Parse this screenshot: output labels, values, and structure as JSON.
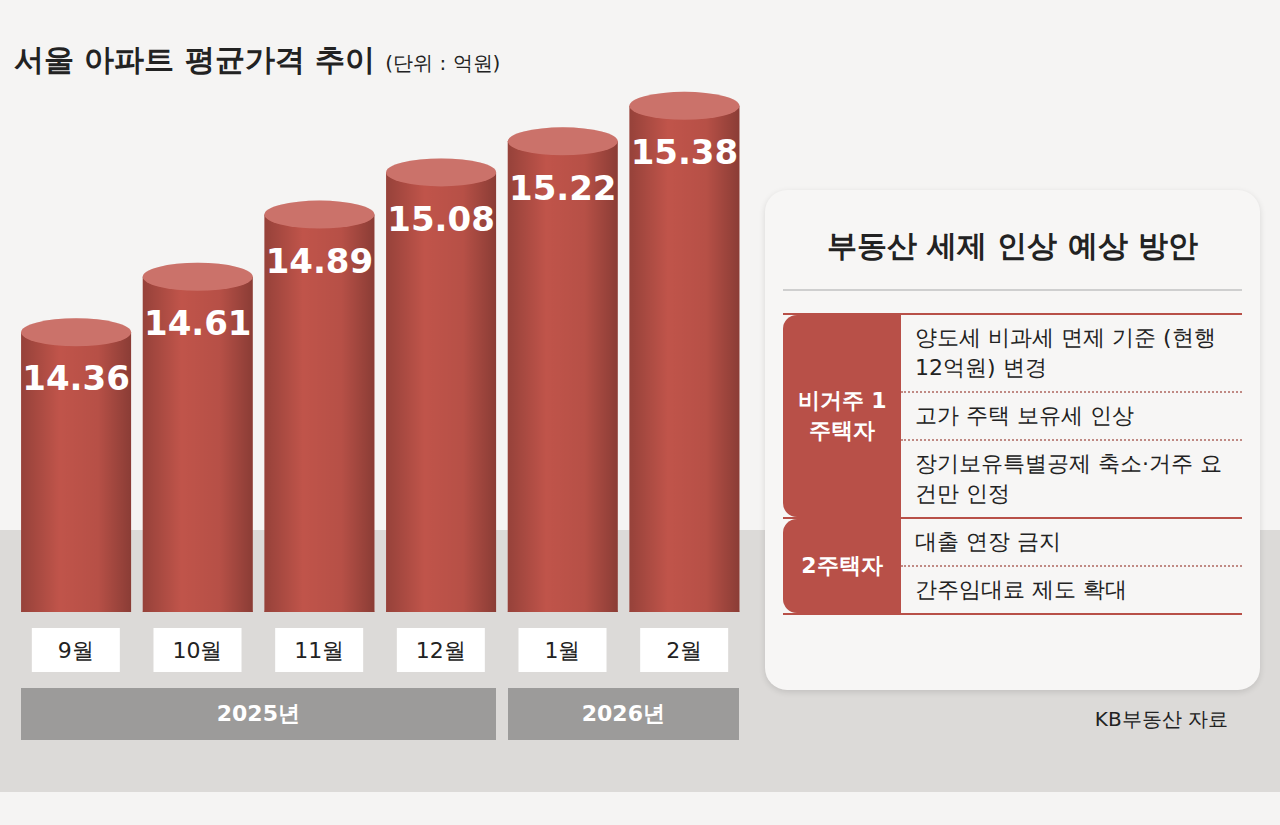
{
  "chart_data": {
    "type": "bar",
    "title": "서울 아파트 평균가격 추이",
    "subtitle": "(단위 : 억원)",
    "categories": [
      "9월",
      "10월",
      "11월",
      "12월",
      "1월",
      "2월"
    ],
    "values": [
      14.36,
      14.61,
      14.89,
      15.08,
      15.22,
      15.38
    ],
    "color": "#c0544a",
    "ylim": [
      13.1,
      15.6
    ],
    "data_labels": true,
    "tick_labels": "x",
    "x_groups": [
      {
        "label": "2025년",
        "span": 4
      },
      {
        "label": "2026년",
        "span": 2
      }
    ],
    "side_panel": {
      "title": "부동산 세제 인상 예상 방안",
      "rows": [
        {
          "group": "비거주 1주택자",
          "items": [
            "양도세 비과세 면제 기준 (현행 12억원) 변경",
            "고가 주택 보유세 인상",
            "장기보유특별공제 축소·거주 요건만 인정"
          ]
        },
        {
          "group": "2주택자",
          "items": [
            "대출 연장 금지",
            "간주임대료 제도 확대"
          ]
        }
      ]
    },
    "source": "KB부동산 자료"
  }
}
